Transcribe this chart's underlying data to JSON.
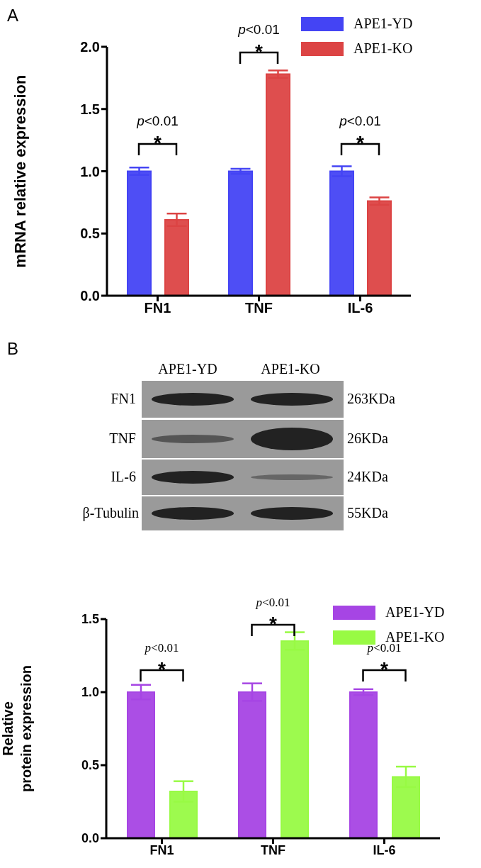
{
  "chart_data": [
    {
      "type": "bar",
      "ylabel": "mRNA relative expression",
      "categories": [
        "FN1",
        "TNF",
        "IL-6"
      ],
      "series": [
        {
          "name": "APE1-YD",
          "color": "#4444f4",
          "values": [
            1.0,
            1.0,
            1.0
          ],
          "errors": [
            0.03,
            0.02,
            0.04
          ]
        },
        {
          "name": "APE1-KO",
          "color": "#dc4444",
          "values": [
            0.61,
            1.78,
            0.76
          ],
          "errors": [
            0.05,
            0.03,
            0.03
          ]
        }
      ],
      "ylim": [
        0,
        2
      ],
      "yticks": [
        {
          "value": 0,
          "label": "0.0"
        },
        {
          "value": 0.5,
          "label": "0.5"
        },
        {
          "value": 1,
          "label": "1.0"
        },
        {
          "value": 1.5,
          "label": "1.5"
        },
        {
          "value": 2,
          "label": "2.0"
        }
      ],
      "legend": "top right",
      "grid": false,
      "annotations": [
        "A",
        "p<0.01\n*",
        "p<0.01\n*",
        "p<0.01\n*"
      ]
    },
    {
      "type": "other",
      "annotations": [
        "B",
        "APE1-YD",
        "APE1-KO",
        "FN1",
        "TNF",
        "IL-6",
        "β-Tubulin",
        "263KDa",
        "26KDa",
        "24KDa",
        "55KDa"
      ]
    },
    {
      "type": "bar",
      "ylabel": "Relative\nprotein expression",
      "categories": [
        "FN1",
        "TNF",
        "IL-6"
      ],
      "series": [
        {
          "name": "APE1-YD",
          "color": "#a645e4",
          "values": [
            1.0,
            1.0,
            1.0
          ],
          "errors": [
            0.05,
            0.06,
            0.02
          ]
        },
        {
          "name": "APE1-KO",
          "color": "#98fa44",
          "values": [
            0.32,
            1.35,
            0.42
          ],
          "errors": [
            0.07,
            0.06,
            0.07
          ]
        }
      ],
      "ylim": [
        0,
        1.5
      ],
      "yticks": [
        {
          "value": 0,
          "label": "0.0"
        },
        {
          "value": 0.5,
          "label": "0.5"
        },
        {
          "value": 1,
          "label": "1.0"
        },
        {
          "value": 1.5,
          "label": "1.5"
        }
      ],
      "legend": "top right",
      "grid": false,
      "annotations": [
        "p<0.01\n*",
        "p<0.01\n*",
        "p<0.01\n*"
      ]
    }
  ]
}
